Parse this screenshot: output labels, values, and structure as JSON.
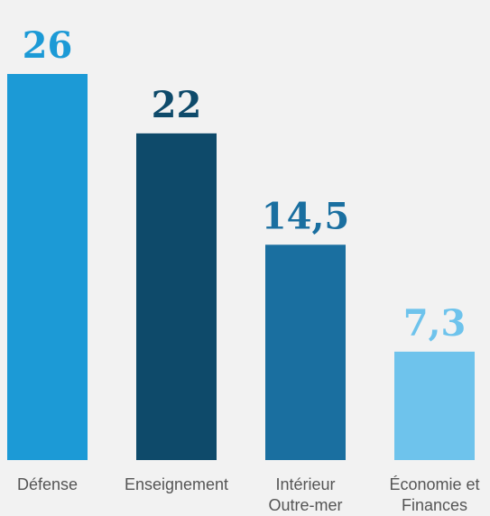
{
  "chart_data": {
    "type": "bar",
    "categories": [
      [
        "Défense"
      ],
      [
        "Enseignement"
      ],
      [
        "Intérieur",
        "Outre-mer"
      ],
      [
        "Économie et",
        "Finances"
      ]
    ],
    "values": [
      26,
      22,
      14.5,
      7.3
    ],
    "value_labels": [
      "26",
      "22",
      "14,5",
      "7,3"
    ],
    "bar_colors": [
      "#1c9ad6",
      "#0e4a6a",
      "#1a6fa0",
      "#6ec3ec"
    ],
    "label_colors": [
      "#1c9ad6",
      "#0e4a6a",
      "#1a6fa0",
      "#6ec3ec"
    ],
    "ylim": [
      0,
      26
    ],
    "grid": false,
    "title": "",
    "xlabel": "",
    "ylabel": ""
  }
}
